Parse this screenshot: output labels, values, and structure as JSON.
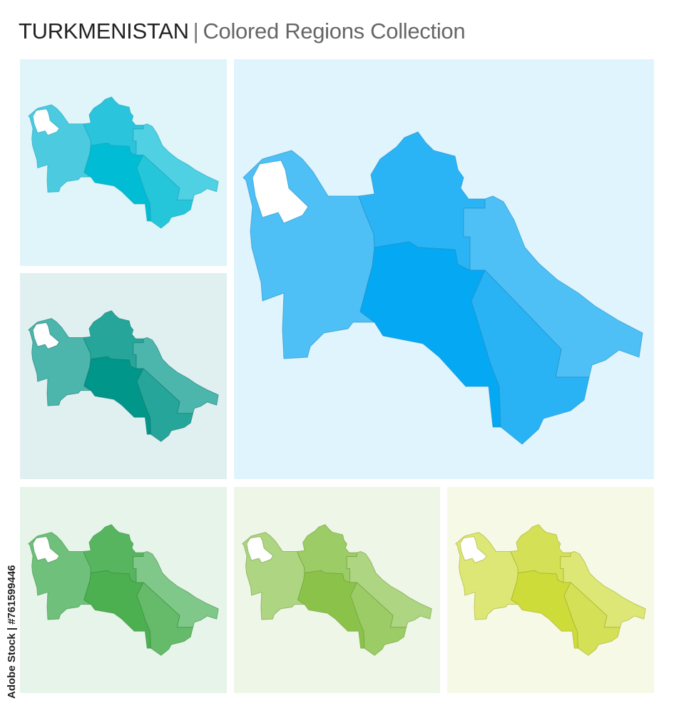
{
  "header": {
    "country": "TURKMENISTAN",
    "separator": "|",
    "subtitle": "Colored Regions Collection"
  },
  "side_label": "Adobe Stock | #761599446",
  "map": {
    "regions": [
      "west",
      "north",
      "northeast",
      "center",
      "southeast"
    ],
    "bay_color": "#ffffff"
  },
  "panels": [
    {
      "name": "blue",
      "size": "large",
      "background": "#e0f4fd",
      "stroke": "#1b8fc7",
      "colors": [
        "#4fc0f5",
        "#2bb4f5",
        "#4fc0f5",
        "#05a8f3",
        "#29b3f4"
      ]
    },
    {
      "name": "cyan",
      "size": "small",
      "background": "#dff5f9",
      "stroke": "#1aa3b8",
      "colors": [
        "#4ccbe0",
        "#2ac4dc",
        "#4fd0e3",
        "#00bcd4",
        "#26c6da"
      ]
    },
    {
      "name": "teal",
      "size": "small",
      "background": "#e0f0f1",
      "stroke": "#137a70",
      "colors": [
        "#4db6ac",
        "#26a69a",
        "#4db6ac",
        "#00968a",
        "#26a69a"
      ]
    },
    {
      "name": "green",
      "size": "small",
      "background": "#e6f4ea",
      "stroke": "#3a8f3f",
      "colors": [
        "#6fc07a",
        "#57b560",
        "#7fc88a",
        "#4caf50",
        "#66bb6a"
      ]
    },
    {
      "name": "light-green",
      "size": "small",
      "background": "#eef6e7",
      "stroke": "#6f9c3a",
      "colors": [
        "#aed581",
        "#9ccc65",
        "#aed581",
        "#8bc34a",
        "#9ccc65"
      ]
    },
    {
      "name": "lime",
      "size": "small",
      "background": "#f6f9e5",
      "stroke": "#a4ad2a",
      "colors": [
        "#dce775",
        "#d4e157",
        "#dce775",
        "#cddc39",
        "#d4e157"
      ]
    }
  ]
}
